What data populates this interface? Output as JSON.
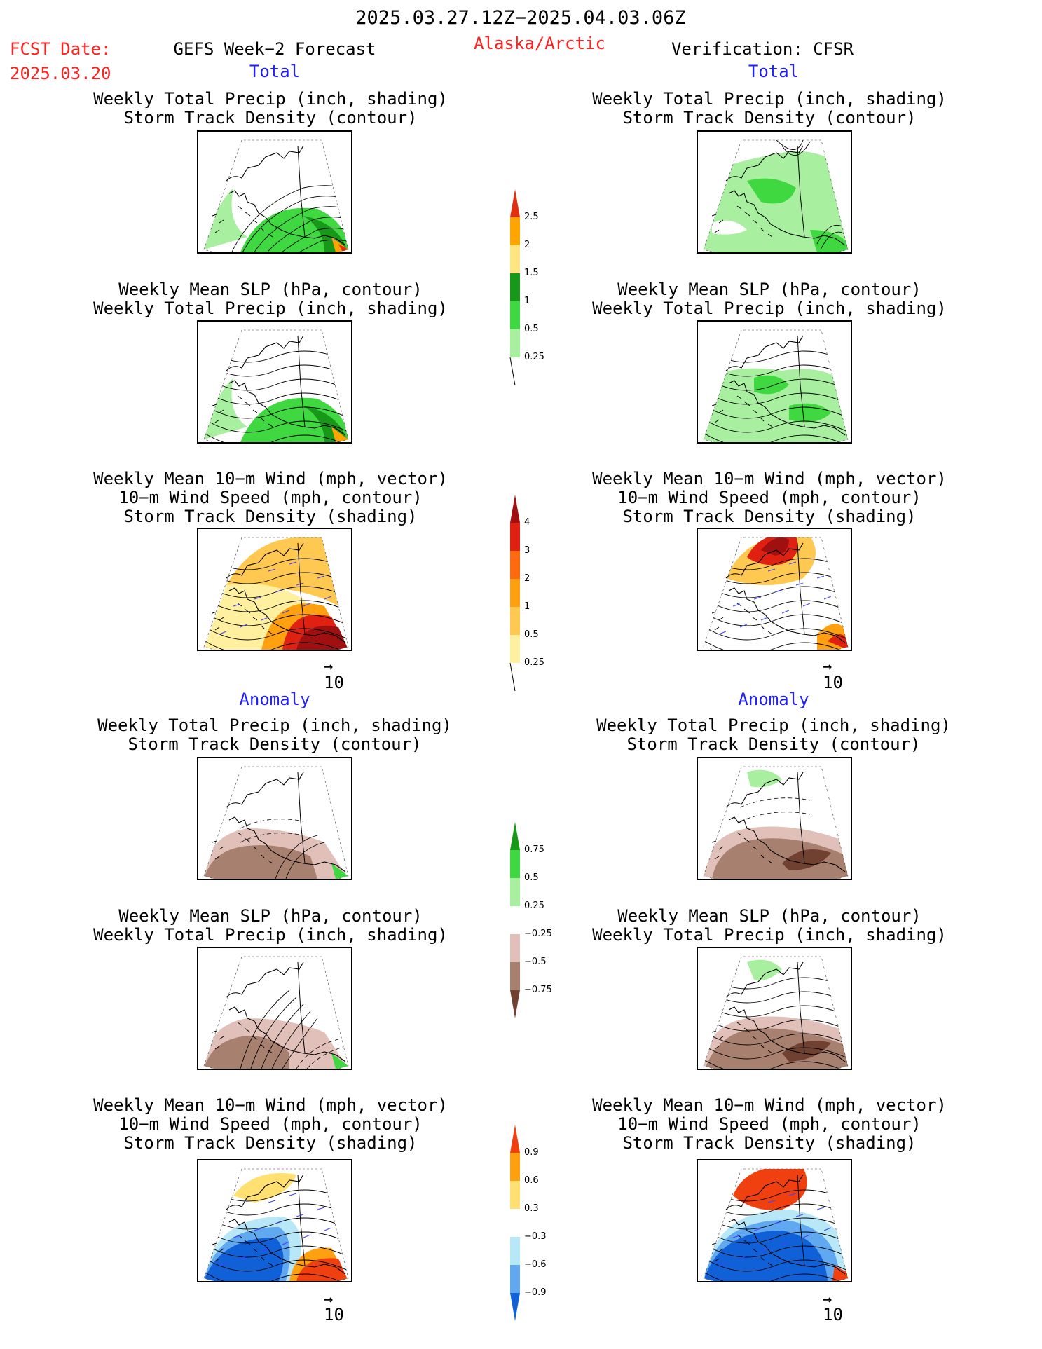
{
  "header": {
    "date_range": "2025.03.27.12Z−2025.04.03.06Z",
    "fcst_label": "FCST Date:",
    "fcst_date": "2025.03.20",
    "left_title": "GEFS Week−2 Forecast",
    "region": "Alaska/Arctic",
    "right_title": "Verification: CFSR"
  },
  "sections": {
    "total": "Total",
    "anomaly": "Anomaly"
  },
  "panel_titles": {
    "precip_storm": [
      "Weekly Total Precip (inch, shading)",
      "Storm Track Density (contour)"
    ],
    "slp_precip": [
      "Weekly Mean SLP (hPa, contour)",
      "Weekly Total Precip (inch, shading)"
    ],
    "wind_storm": [
      "Weekly Mean 10−m Wind (mph, vector)",
      "10−m Wind Speed (mph, contour)",
      "Storm Track Density (shading)"
    ]
  },
  "vector_ref": {
    "label": "10",
    "arrow": "→"
  },
  "colorbars": [
    {
      "id": "precip-total",
      "labels": [
        "2.5",
        "2",
        "1.5",
        "1",
        "0.5",
        "0.25"
      ],
      "colors": [
        "#e03010",
        "#ffa500",
        "#ffe680",
        "#189818",
        "#40d840",
        "#a8f0a0"
      ]
    },
    {
      "id": "storm-total",
      "labels": [
        "4",
        "3",
        "2",
        "1",
        "0.5",
        "0.25"
      ],
      "colors": [
        "#a01010",
        "#e02010",
        "#ff6a10",
        "#ffa010",
        "#ffc850",
        "#fff0a0"
      ]
    },
    {
      "id": "precip-anom",
      "labels": [
        "0.75",
        "0.5",
        "0.25",
        "−0.25",
        "−0.5",
        "−0.75"
      ],
      "colors": [
        "#189818",
        "#40d840",
        "#a8f0a0",
        "#ffffff",
        "#e0c0b8",
        "#a88070",
        "#704030"
      ]
    },
    {
      "id": "storm-anom",
      "labels": [
        "0.9",
        "0.6",
        "0.3",
        "−0.3",
        "−0.6",
        "−0.9"
      ],
      "colors": [
        "#f04010",
        "#ffa010",
        "#ffe070",
        "#ffffff",
        "#b8e8f8",
        "#60a8f0",
        "#1060d8"
      ]
    }
  ]
}
